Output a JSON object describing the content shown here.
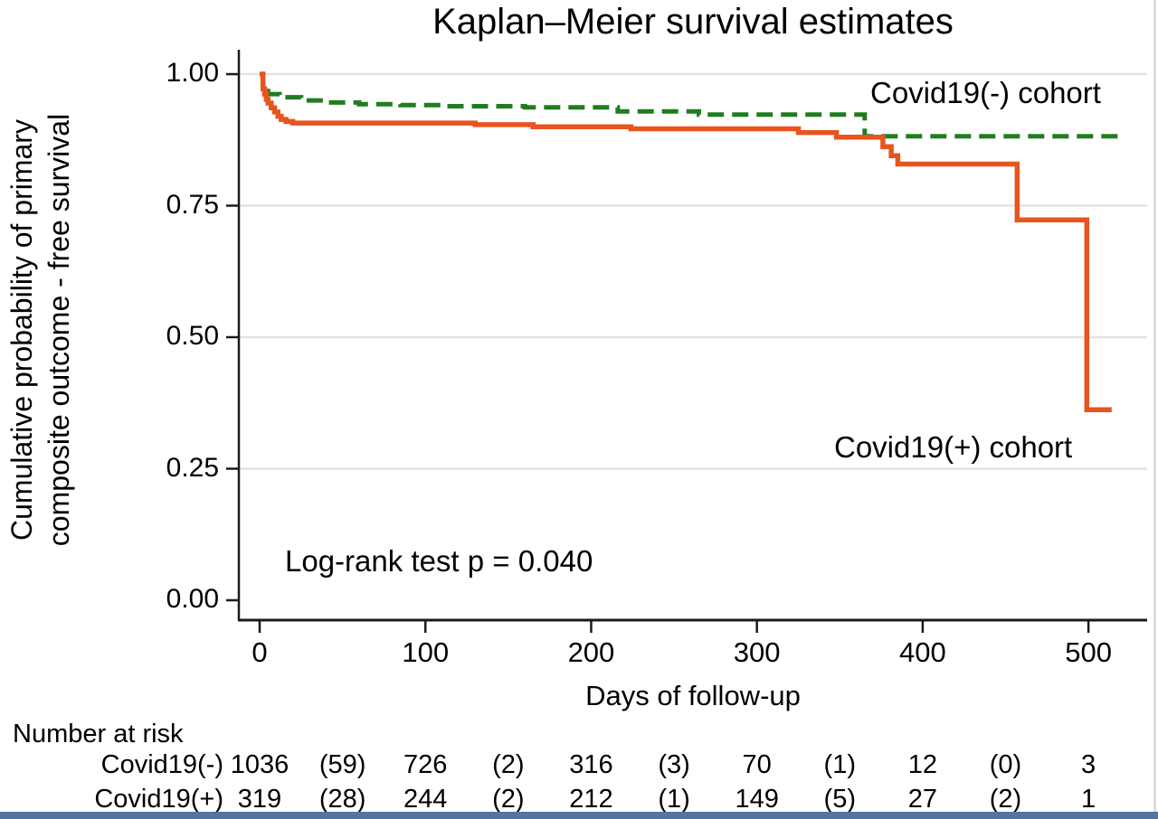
{
  "annotations": {
    "negative_cohort_label": "Covid19(-) cohort",
    "positive_cohort_label": "Covid19(+) cohort",
    "logrank_text": "Log-rank test p = 0.040"
  },
  "colors": {
    "negative_series": "#1F7D1F",
    "positive_series": "#E8541E",
    "grid": "#E3E3E3",
    "axis": "#1A1A1A",
    "text": "#000000",
    "bottom_strip": "#54759D",
    "right_edge": "#DADEE3"
  },
  "chart_data": {
    "type": "line",
    "subtype": "kaplan-meier-step",
    "title": "Kaplan–Meier survival estimates",
    "xlabel": "Days of follow-up",
    "ylabel": "Cumulative probability of primary composite outcome - free survival",
    "ylabel_lines": [
      "Cumulative probability of primary",
      "composite outcome - free survival"
    ],
    "xlim": [
      0,
      525
    ],
    "ylim": [
      0,
      1.0
    ],
    "x_tick_values": [
      0,
      100,
      200,
      300,
      400,
      500
    ],
    "x_tick_labels": [
      "0",
      "100",
      "200",
      "300",
      "400",
      "500"
    ],
    "y_tick_values": [
      1.0,
      0.75,
      0.5,
      0.25,
      0.0
    ],
    "y_tick_labels": [
      "1.00",
      "0.75",
      "0.50",
      "0.25",
      "0.00"
    ],
    "grid": "horizontal",
    "legend_position": "inline-annotations",
    "logrank_p": 0.04,
    "series": [
      {
        "name": "Covid19(-) cohort",
        "style": "dashed",
        "color": "#1F7D1F",
        "step": true,
        "points": [
          [
            0,
            1.0
          ],
          [
            2,
            0.976
          ],
          [
            3,
            0.968
          ],
          [
            5,
            0.962
          ],
          [
            12,
            0.956
          ],
          [
            25,
            0.95
          ],
          [
            40,
            0.946
          ],
          [
            60,
            0.943
          ],
          [
            85,
            0.941
          ],
          [
            110,
            0.939
          ],
          [
            160,
            0.937
          ],
          [
            216,
            0.929
          ],
          [
            265,
            0.923
          ],
          [
            365,
            0.882
          ],
          [
            522,
            0.882
          ]
        ]
      },
      {
        "name": "Covid19(+) cohort",
        "style": "solid",
        "color": "#E8541E",
        "step": true,
        "points": [
          [
            0,
            1.0
          ],
          [
            2,
            0.972
          ],
          [
            3,
            0.962
          ],
          [
            4,
            0.952
          ],
          [
            5,
            0.945
          ],
          [
            7,
            0.936
          ],
          [
            9,
            0.928
          ],
          [
            11,
            0.92
          ],
          [
            13,
            0.914
          ],
          [
            16,
            0.91
          ],
          [
            20,
            0.907
          ],
          [
            130,
            0.904
          ],
          [
            165,
            0.9
          ],
          [
            224,
            0.896
          ],
          [
            325,
            0.889
          ],
          [
            348,
            0.88
          ],
          [
            376,
            0.862
          ],
          [
            381,
            0.845
          ],
          [
            385,
            0.829
          ],
          [
            457,
            0.723
          ],
          [
            499,
            0.362
          ],
          [
            514,
            0.362
          ]
        ]
      }
    ],
    "number_at_risk": {
      "heading": "Number at risk",
      "column_days": [
        0,
        50,
        100,
        150,
        200,
        250,
        300,
        350,
        400,
        450,
        500
      ],
      "rows": [
        {
          "label": "Covid19(-)",
          "values": [
            "1036",
            "(59)",
            "726",
            "(2)",
            "316",
            "(3)",
            "70",
            "(1)",
            "12",
            "(0)",
            "3"
          ]
        },
        {
          "label": "Covid19(+)",
          "values": [
            "319",
            "(28)",
            "244",
            "(2)",
            "212",
            "(1)",
            "149",
            "(5)",
            "27",
            "(2)",
            "1"
          ]
        }
      ]
    }
  }
}
